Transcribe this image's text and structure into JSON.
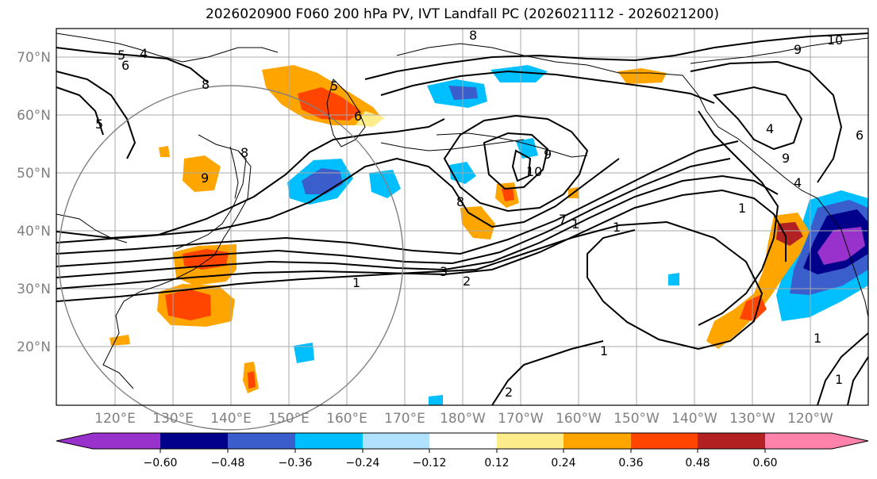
{
  "title": "2026020900 F060 200 hPa PV, IVT Landfall PC (2026021112 - 2026021200)",
  "lat_labels": [
    "70°N",
    "60°N",
    "50°N",
    "40°N",
    "30°N",
    "20°N"
  ],
  "lon_labels": [
    "120°E",
    "130°E",
    "140°E",
    "150°E",
    "160°E",
    "170°E",
    "180°W",
    "170°W",
    "160°W",
    "150°W",
    "140°W",
    "130°W",
    "120°W"
  ],
  "colorbar": {
    "ticks": [
      "−0.60",
      "−0.48",
      "−0.36",
      "−0.24",
      "−0.12",
      "0.12",
      "0.24",
      "0.36",
      "0.48",
      "0.60"
    ],
    "colors": [
      "#9932cc",
      "#00008b",
      "#3a5fcd",
      "#00bfff",
      "#b0e2ff",
      "#ffffff",
      "#ffec8b",
      "#ffa500",
      "#ff4500",
      "#b22222",
      "#ff82ab"
    ]
  },
  "contour_labels": [
    "4",
    "6",
    "5",
    "8",
    "5",
    "6",
    "8",
    "9",
    "8",
    "10",
    "9",
    "4",
    "6",
    "9",
    "8",
    "10",
    "9",
    "1",
    "3",
    "2",
    "1",
    "7",
    "1",
    "4",
    "1",
    "2",
    "1",
    "1",
    "1",
    "5"
  ],
  "colors": {
    "contour": "#000000",
    "grid": "#a9a9a9",
    "coast": "#000000",
    "circle": "#808080"
  }
}
